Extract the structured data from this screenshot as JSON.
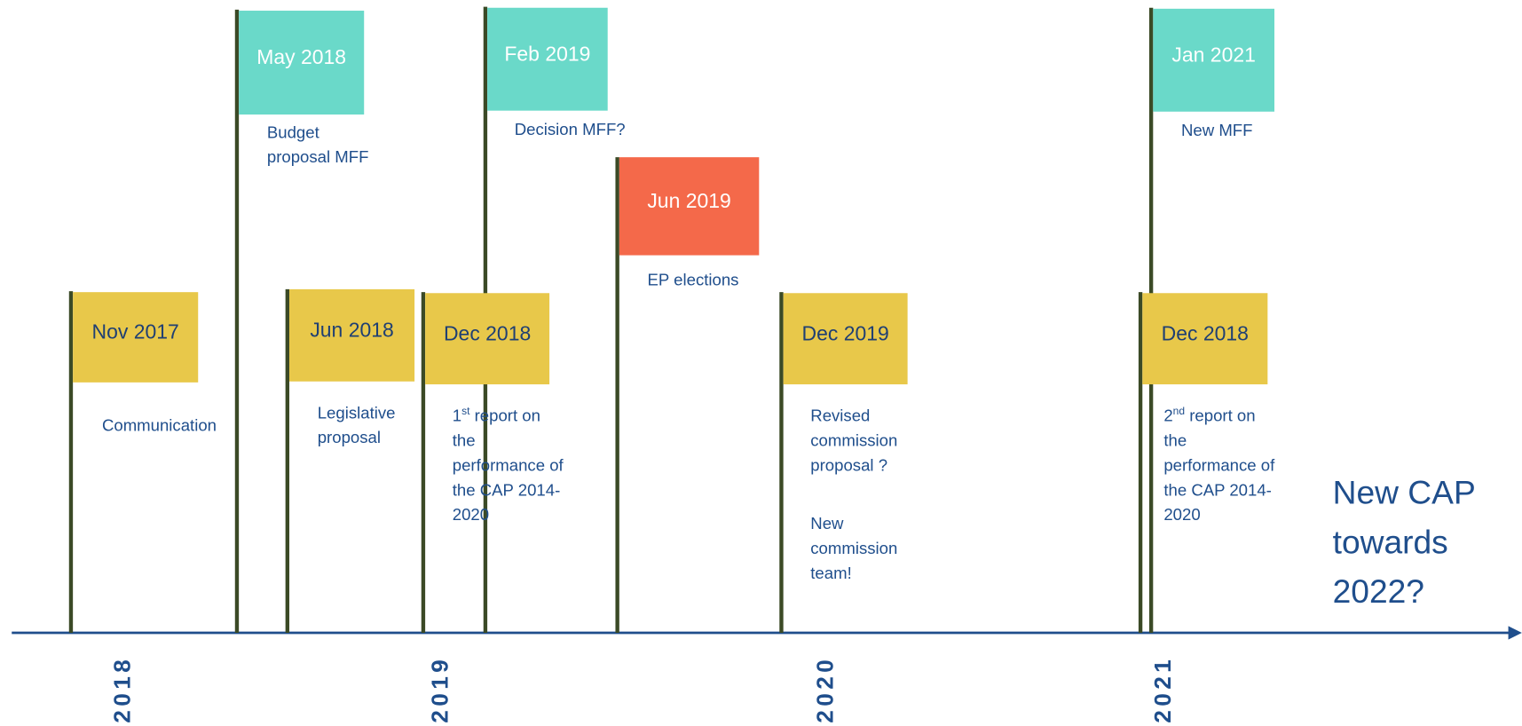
{
  "flags": [
    {
      "date": "Nov 2017",
      "color": "#e8c84a",
      "text_color": "#1f3f73",
      "paragraphs": [
        [
          "Communication"
        ]
      ]
    },
    {
      "date": "May 2018",
      "color": "#6ad9c9",
      "text_color": "#ffffff",
      "paragraphs": [
        [
          "Budget",
          "proposal MFF"
        ]
      ]
    },
    {
      "date": "Jun 2018",
      "color": "#e8c84a",
      "text_color": "#1f3f73",
      "paragraphs": [
        [
          "Legislative",
          "proposal"
        ]
      ]
    },
    {
      "date": "Dec 2018",
      "color": "#e8c84a",
      "text_color": "#1f3f73",
      "paragraphs": [
        [
          {
            "base": "1",
            "sup": "st",
            "rest": " report on"
          },
          "the",
          "performance of",
          "the CAP 2014-",
          "2020"
        ]
      ]
    },
    {
      "date": "Feb 2019",
      "color": "#6ad9c9",
      "text_color": "#ffffff",
      "paragraphs": [
        [
          "Decision MFF?"
        ]
      ]
    },
    {
      "date": "Jun 2019",
      "color": "#f4694a",
      "text_color": "#ffffff",
      "paragraphs": [
        [
          "EP elections"
        ]
      ]
    },
    {
      "date": "Dec 2019",
      "color": "#e8c84a",
      "text_color": "#1f3f73",
      "paragraphs": [
        [
          "Revised",
          "commission",
          "proposal ?"
        ],
        [
          "New",
          "commission",
          "team!"
        ]
      ]
    },
    {
      "date": "Jan 2021",
      "color": "#6ad9c9",
      "text_color": "#ffffff",
      "paragraphs": [
        [
          "New MFF"
        ]
      ]
    },
    {
      "date": "Dec 2018",
      "color": "#e8c84a",
      "text_color": "#1f3f73",
      "paragraphs": [
        [
          {
            "base": "2",
            "sup": "nd",
            "rest": " report on"
          },
          "the",
          "performance of",
          "the CAP 2014-",
          "2020"
        ]
      ]
    }
  ],
  "years": [
    "2018",
    "2019",
    "2020",
    "2021"
  ],
  "final_note": [
    "New CAP",
    "towards",
    "2022?"
  ]
}
